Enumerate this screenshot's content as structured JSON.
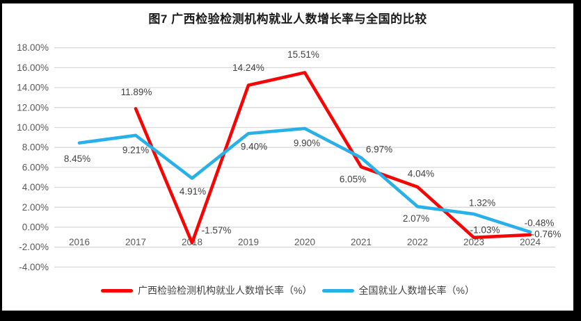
{
  "frame": {
    "border_color": "#000000",
    "background": "#ffffff"
  },
  "chart_data": {
    "type": "line",
    "title": "图7 广西检验检测机构就业人数增长率与全国的比较",
    "categories": [
      "2016",
      "2017",
      "2018",
      "2019",
      "2020",
      "2021",
      "2022",
      "2023",
      "2024"
    ],
    "series": [
      {
        "key": "guangxi",
        "name": "广西检验检测机构就业人数增长率（%）",
        "color": "#F70505",
        "values": [
          null,
          11.89,
          -1.57,
          14.24,
          15.51,
          6.05,
          4.04,
          -1.03,
          -0.76
        ],
        "point_labels": [
          "",
          "11.89%",
          "-1.57%",
          "14.24%",
          "15.51%",
          "6.05%",
          "4.04%",
          "-1.03%",
          "-0.76%"
        ],
        "label_offsets": [
          [
            0,
            0
          ],
          [
            1,
            -24
          ],
          [
            35,
            -18
          ],
          [
            0,
            -25
          ],
          [
            -2,
            -26
          ],
          [
            -12,
            18
          ],
          [
            5,
            -19
          ],
          [
            16,
            -11
          ],
          [
            23,
            -1
          ]
        ]
      },
      {
        "key": "national",
        "name": "全国就业人数增长率（%）",
        "color": "#28B0E8",
        "values": [
          8.45,
          9.21,
          4.91,
          9.4,
          9.9,
          6.97,
          2.07,
          1.32,
          -0.48
        ],
        "point_labels": [
          "8.45%",
          "9.21%",
          "4.91%",
          "9.40%",
          "9.90%",
          "6.97%",
          "2.07%",
          "1.32%",
          "-0.48%"
        ],
        "label_offsets": [
          [
            -3,
            23
          ],
          [
            0,
            21
          ],
          [
            1,
            19
          ],
          [
            8,
            19
          ],
          [
            3,
            21
          ],
          [
            26,
            -12
          ],
          [
            -2,
            17
          ],
          [
            12,
            -16
          ],
          [
            13,
            -13
          ]
        ]
      }
    ],
    "ylim": [
      -4,
      18
    ],
    "ytick_step": 2,
    "ytick_labels": [
      "18.00%",
      "16.00%",
      "14.00%",
      "12.00%",
      "10.00%",
      "8.00%",
      "6.00%",
      "4.00%",
      "2.00%",
      "0.00%",
      "-2.00%",
      "-4.00%"
    ],
    "grid": true,
    "legend_position": "bottom",
    "colors": {
      "gridline": "#D9D9D9",
      "axis_text": "#595959",
      "data_label_text": "#3F3F3F",
      "title_text": "#1a1a1a"
    }
  }
}
